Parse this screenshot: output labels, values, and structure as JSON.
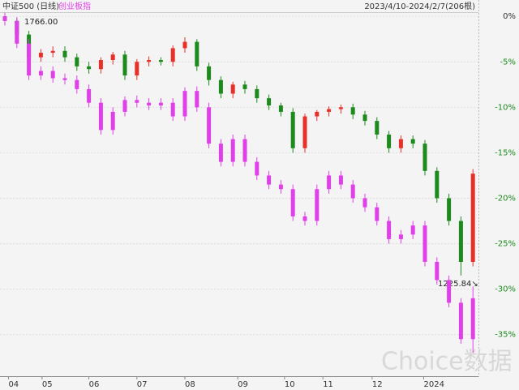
{
  "chart_data": {
    "type": "candlestick",
    "title": "中证500 (日线)",
    "subtitle": "创业板指",
    "range_label": "2023/4/10-2024/2/7(206根)",
    "annotations": [
      "1766.00",
      "1225.84↘"
    ],
    "watermark": "Choice数据",
    "ylim": [
      -39.4,
      1.8
    ],
    "yticks": [
      {
        "value": 0,
        "label": "0%"
      },
      {
        "value": -5,
        "label": "-5%"
      },
      {
        "value": -10,
        "label": "-10%"
      },
      {
        "value": -15,
        "label": "-15%"
      },
      {
        "value": -20,
        "label": "-20%"
      },
      {
        "value": -25,
        "label": "-25%"
      },
      {
        "value": -30,
        "label": "-30%"
      },
      {
        "value": -35,
        "label": "-35%"
      }
    ],
    "xticks": [
      {
        "value": 0.3,
        "label": "04"
      },
      {
        "value": 3.1,
        "label": "05"
      },
      {
        "value": 7,
        "label": "06"
      },
      {
        "value": 11,
        "label": "07"
      },
      {
        "value": 15,
        "label": "08"
      },
      {
        "value": 19.4,
        "label": "09"
      },
      {
        "value": 23.3,
        "label": "10"
      },
      {
        "value": 26.5,
        "label": "11"
      },
      {
        "value": 30.6,
        "label": "12"
      },
      {
        "value": 34.9,
        "label": "2024"
      }
    ],
    "grid": true,
    "series": [
      {
        "name": "中证500 (日线)",
        "up_color": "#e8302a",
        "down_color": "#1c8a1c",
        "open": [
          0,
          -0.5,
          -2,
          -4.5,
          -4,
          -3.8,
          -4.5,
          -5.5,
          -5.8,
          -4.8,
          -4.2,
          -6.5,
          -5,
          -4.8,
          -5,
          -3.5,
          -2.8,
          -5.5,
          -7,
          -8.5,
          -7.5,
          -8,
          -9,
          -9.8,
          -10.5,
          -14.5,
          -11,
          -10.5,
          -10.2,
          -10,
          -10.8,
          -11.5,
          -13,
          -14.5,
          -13.5,
          -14,
          -17,
          -20,
          -22.5,
          -27
        ],
        "high": [
          0.4,
          -0.2,
          -1.6,
          -3.6,
          -3.3,
          -3.3,
          -4.1,
          -5,
          -4.5,
          -3.9,
          -3.8,
          -4.7,
          -4.4,
          -4.5,
          -3.2,
          -2.3,
          -2.5,
          -5.1,
          -6.6,
          -7.2,
          -7.1,
          -7.6,
          -8.6,
          -9.5,
          -10.1,
          -10.7,
          -10.3,
          -9.9,
          -9.7,
          -9.6,
          -10.4,
          -11.1,
          -12.6,
          -13.1,
          -13.1,
          -13.6,
          -16.6,
          -19.5,
          -22,
          -16.8
        ],
        "low": [
          -1,
          -2.5,
          -5,
          -5,
          -4.5,
          -5,
          -6,
          -6.3,
          -6.3,
          -5.3,
          -7,
          -7,
          -5.5,
          -5.4,
          -5.5,
          -4,
          -6,
          -7.6,
          -9,
          -9,
          -8.5,
          -9.5,
          -10.3,
          -11,
          -15,
          -15,
          -11.5,
          -11,
          -10.7,
          -11.3,
          -12,
          -13.5,
          -15,
          -15,
          -14.5,
          -17.5,
          -20.5,
          -23,
          -28.5,
          -27.5
        ],
        "close": [
          -0.5,
          -2,
          -4.5,
          -4,
          -3.8,
          -4.5,
          -5.5,
          -5.8,
          -4.8,
          -4.2,
          -6.5,
          -5,
          -4.8,
          -5,
          -3.5,
          -2.8,
          -5.5,
          -7,
          -8.5,
          -7.5,
          -8,
          -9,
          -9.8,
          -10.5,
          -14.5,
          -11,
          -10.5,
          -10.2,
          -10,
          -10.8,
          -11.5,
          -13,
          -14.5,
          -13.5,
          -14,
          -17,
          -20,
          -22.5,
          -27,
          -17.3
        ]
      },
      {
        "name": "创业板指",
        "up_color": "#e040e8",
        "down_color": "#e040e8",
        "open": [
          0,
          -0.5,
          -3,
          -6.5,
          -6,
          -6.8,
          -7,
          -8,
          -9.5,
          -12.5,
          -10.5,
          -9.2,
          -9.5,
          -9.8,
          -9.5,
          -11,
          -8.2,
          -10,
          -14,
          -16,
          -13.5,
          -16,
          -17.5,
          -18.5,
          -19,
          -22,
          -22.5,
          -19,
          -17.5,
          -18.5,
          -20,
          -21,
          -22.5,
          -24.5,
          -24,
          -23,
          -27,
          -29,
          -31.5,
          -35.5
        ],
        "high": [
          0.4,
          -0.1,
          -2.5,
          -5.5,
          -5.5,
          -6.3,
          -6.5,
          -7.5,
          -9,
          -10,
          -8.8,
          -8.7,
          -9,
          -9,
          -9,
          -7.8,
          -7.7,
          -9.5,
          -13.5,
          -13,
          -13,
          -15.5,
          -17,
          -18,
          -18.5,
          -21.5,
          -18.5,
          -17,
          -17,
          -18,
          -19.5,
          -20.5,
          -22,
          -23.5,
          -22.5,
          -22.5,
          -26.5,
          -28.5,
          -31,
          -29.7
        ],
        "low": [
          -1,
          -3.5,
          -7,
          -7,
          -7.3,
          -7.5,
          -8.5,
          -10,
          -13,
          -13,
          -11,
          -10,
          -10.3,
          -10.3,
          -11.5,
          -11.5,
          -10.5,
          -14.5,
          -16.5,
          -16.5,
          -16.5,
          -18,
          -19,
          -19.5,
          -22.5,
          -23,
          -23,
          -19.5,
          -19,
          -20.5,
          -21.5,
          -23,
          -25,
          -25,
          -24.5,
          -27.5,
          -29.5,
          -32,
          -36,
          -37
        ],
        "close": [
          -0.5,
          -3,
          -6.5,
          -6,
          -6.8,
          -7,
          -8,
          -9.5,
          -12.5,
          -10.5,
          -9.2,
          -9.5,
          -9.8,
          -9.5,
          -11,
          -8.2,
          -10,
          -14,
          -16,
          -13.5,
          -16,
          -17.5,
          -18.5,
          -19,
          -22,
          -22.5,
          -19,
          -17.5,
          -18.5,
          -20,
          -21,
          -22.5,
          -24.5,
          -24,
          -23,
          -27,
          -29,
          -31.5,
          -35.5,
          -31
        ]
      }
    ]
  }
}
